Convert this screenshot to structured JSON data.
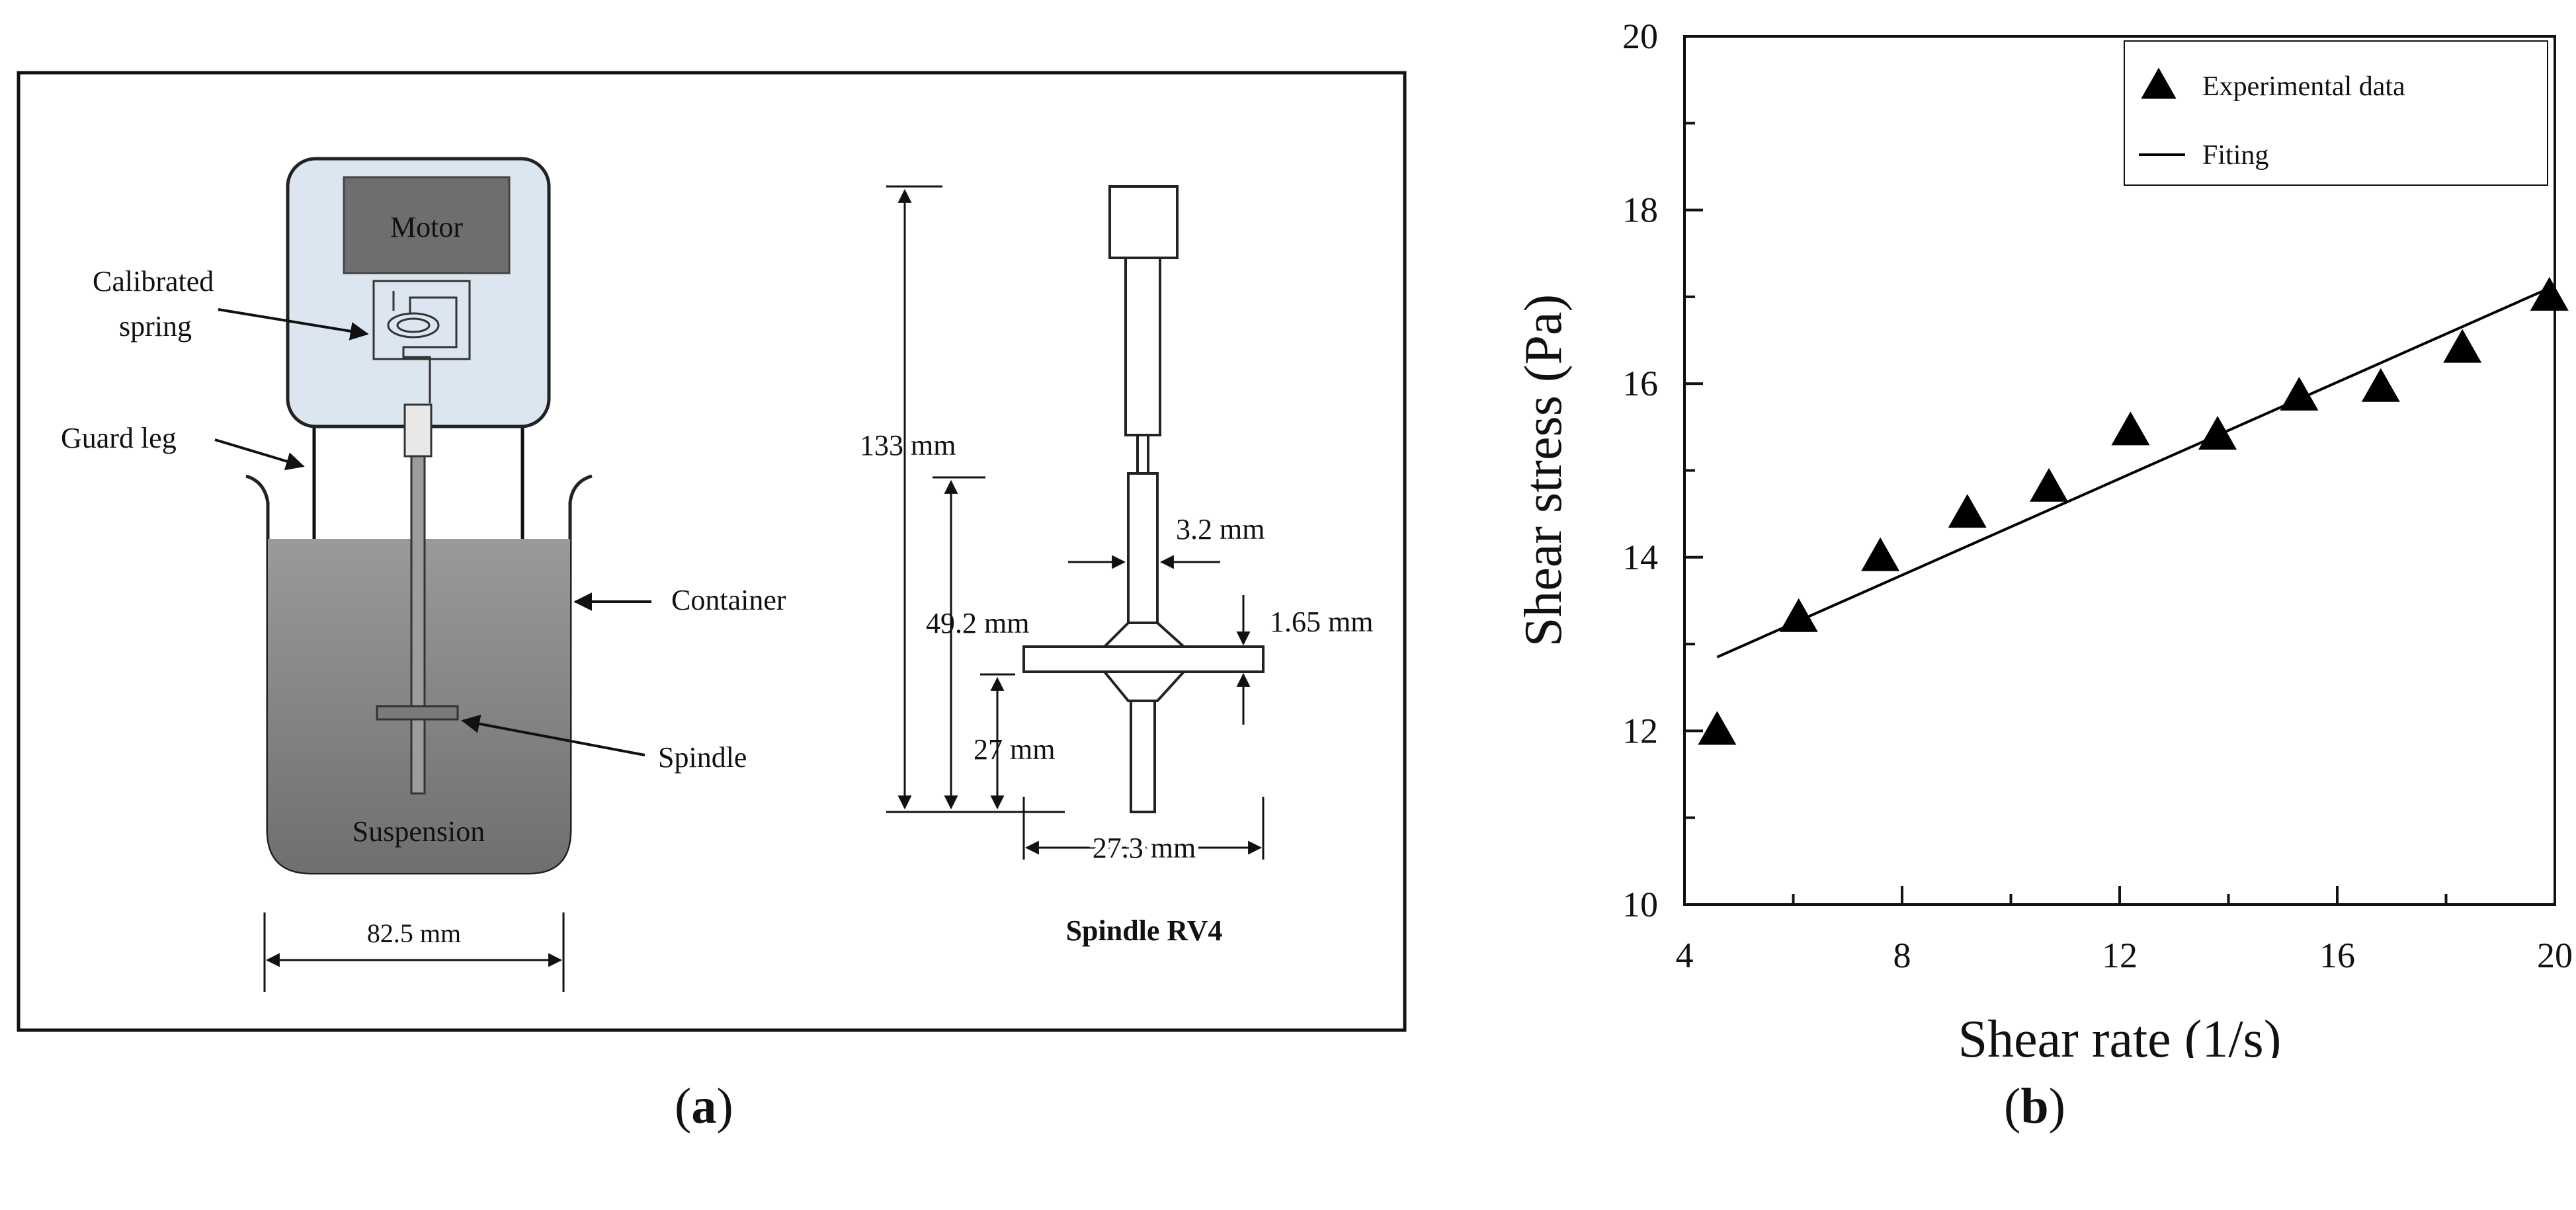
{
  "panel_a": {
    "letter": "a",
    "labels": {
      "motor": "Motor",
      "calibrated_spring_line1": "Calibrated",
      "calibrated_spring_line2": "spring",
      "guard_leg": "Guard leg",
      "container": "Container",
      "spindle": "Spindle",
      "suspension": "Suspension",
      "width_container": "82.5 mm",
      "dim_133": "133 mm",
      "dim_49_2": "49.2 mm",
      "dim_27": "27 mm",
      "dim_3_2": "3.2 mm",
      "dim_1_65": "1.65 mm",
      "dim_27_3": "27.3 mm",
      "spindle_title": "Spindle RV4"
    },
    "colors": {
      "motor_housing": "#dce6f0",
      "motor_block": "#6e6e6e",
      "suspension": "#8a8a8a"
    }
  },
  "panel_b": {
    "letter": "b"
  },
  "chart_data": {
    "type": "scatter",
    "xlabel": "Shear rate (1/s)",
    "ylabel": "Shear stress (Pa)",
    "xlim": [
      4,
      20
    ],
    "ylim": [
      10,
      20
    ],
    "xticks": [
      4,
      8,
      12,
      16,
      20
    ],
    "yticks": [
      10,
      12,
      14,
      16,
      18,
      20
    ],
    "grid": false,
    "legend_position": "top-right",
    "series": [
      {
        "name": "Experimental data",
        "marker": "triangle",
        "color": "#000000",
        "x": [
          4.6,
          6.1,
          7.6,
          9.2,
          10.7,
          12.2,
          13.8,
          15.3,
          16.8,
          18.3,
          19.9
        ],
        "y": [
          12.0,
          13.3,
          14.0,
          14.5,
          14.8,
          15.45,
          15.4,
          15.85,
          15.95,
          16.4,
          17.0
        ]
      },
      {
        "name": "Fiting",
        "marker": "line",
        "color": "#000000",
        "x": [
          4.6,
          19.9
        ],
        "y": [
          12.85,
          17.1
        ]
      }
    ]
  }
}
